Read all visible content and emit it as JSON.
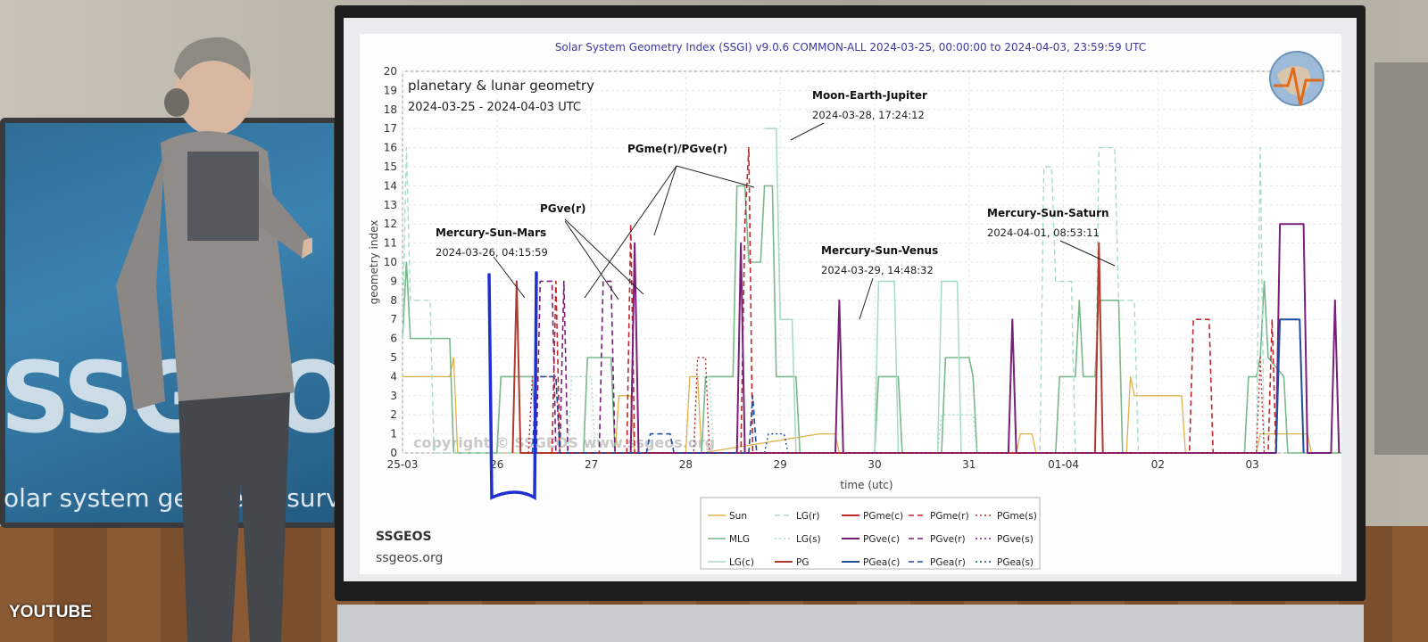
{
  "overlay": {
    "watermark": "YOUTUBE"
  },
  "backdrop": {
    "logo_text": "SSGEOS",
    "subtitle": "olar system geometry survey"
  },
  "colors": {
    "Sun": "#e0b04a",
    "MLG": "#78b88a",
    "LGc": "#a8dcc8",
    "LGr": "#a8dcc8",
    "LGs": "#a8dcc8",
    "PG": "#b03a2e",
    "PGme": "#c0282e",
    "PGve": "#7a1f7a",
    "PGea": "#1f4e9a",
    "marker": "#1f2fd0"
  },
  "chart_data": {
    "type": "line",
    "title": "Solar System Geometry Index (SSGI) v9.0.6 COMMON-ALL 2024-03-25, 00:00:00 to 2024-04-03, 23:59:59 UTC",
    "inner_title": "planetary & lunar geometry",
    "inner_subtitle": "2024-03-25 - 2024-04-03 UTC",
    "xlabel": "time (utc)",
    "ylabel": "geometry index",
    "xlim": [
      "2024-03-25 00:00",
      "2024-04-03 23:59"
    ],
    "ylim": [
      0,
      20
    ],
    "x_ticks": [
      "25-03",
      "26",
      "27",
      "28",
      "29",
      "30",
      "31",
      "01-04",
      "02",
      "03"
    ],
    "y_ticks": [
      0,
      1,
      2,
      3,
      4,
      5,
      6,
      7,
      8,
      9,
      10,
      11,
      12,
      13,
      14,
      15,
      16,
      17,
      18,
      19,
      20
    ],
    "grid": true,
    "copyright": "copyright © SSGEOS  www.ssgeos.org",
    "footer_name": "SSGEOS",
    "footer_url": "ssgeos.org",
    "legend": [
      [
        "Sun",
        "LG(r)",
        "PGme(c)",
        "PGme(r)",
        "PGme(s)"
      ],
      [
        "MLG",
        "LG(s)",
        "PGve(c)",
        "PGve(r)",
        "PGve(s)"
      ],
      [
        "LG(c)",
        "PG",
        "PGea(c)",
        "PGea(r)",
        "PGea(s)"
      ]
    ],
    "annotations": [
      {
        "name": "Mercury-Sun-Mars",
        "date": "2024-03-26, 04:15:59"
      },
      {
        "name": "PGve(r)",
        "date": ""
      },
      {
        "name": "PGme(r)/PGve(r)",
        "date": ""
      },
      {
        "name": "Moon-Earth-Jupiter",
        "date": "2024-03-28, 17:24:12"
      },
      {
        "name": "Mercury-Sun-Venus",
        "date": "2024-03-29, 14:48:32"
      },
      {
        "name": "Mercury-Sun-Saturn",
        "date": "2024-04-01, 08:53:11"
      }
    ],
    "series": [
      {
        "name": "Sun",
        "points": [
          [
            "2024-03-25 00:00",
            4
          ],
          [
            "2024-03-25 12:00",
            4
          ],
          [
            "2024-03-25 13:00",
            5
          ],
          [
            "2024-03-25 14:00",
            0
          ],
          [
            "2024-03-27 06:00",
            0
          ],
          [
            "2024-03-27 07:00",
            3
          ],
          [
            "2024-03-27 10:00",
            3
          ],
          [
            "2024-03-27 11:00",
            0
          ],
          [
            "2024-03-28 00:00",
            0
          ],
          [
            "2024-03-28 01:00",
            4
          ],
          [
            "2024-03-28 03:00",
            4
          ],
          [
            "2024-03-28 04:00",
            0
          ],
          [
            "2024-03-29 10:00",
            1
          ],
          [
            "2024-03-29 14:00",
            1
          ],
          [
            "2024-03-29 15:00",
            0
          ],
          [
            "2024-03-31 12:00",
            0
          ],
          [
            "2024-03-31 13:00",
            1
          ],
          [
            "2024-03-31 16:00",
            1
          ],
          [
            "2024-03-31 17:00",
            0
          ],
          [
            "2024-04-01 16:00",
            0
          ],
          [
            "2024-04-01 17:00",
            4
          ],
          [
            "2024-04-01 18:00",
            3
          ],
          [
            "2024-04-02 06:00",
            3
          ],
          [
            "2024-04-02 07:00",
            0
          ],
          [
            "2024-04-03 01:00",
            0
          ],
          [
            "2024-04-03 02:00",
            1
          ],
          [
            "2024-04-03 14:00",
            1
          ],
          [
            "2024-04-03 15:00",
            0
          ],
          [
            "2024-04-03 23:59",
            0
          ]
        ]
      },
      {
        "name": "MLG",
        "points": [
          [
            "2024-03-25 00:00",
            6
          ],
          [
            "2024-03-25 01:00",
            10
          ],
          [
            "2024-03-25 02:00",
            6
          ],
          [
            "2024-03-25 12:00",
            6
          ],
          [
            "2024-03-25 13:00",
            0
          ],
          [
            "2024-03-26 00:00",
            0
          ],
          [
            "2024-03-26 01:00",
            4
          ],
          [
            "2024-03-26 09:00",
            4
          ],
          [
            "2024-03-26 10:00",
            0
          ],
          [
            "2024-03-26 22:00",
            0
          ],
          [
            "2024-03-26 23:00",
            5
          ],
          [
            "2024-03-27 05:00",
            5
          ],
          [
            "2024-03-27 06:00",
            0
          ],
          [
            "2024-03-28 04:00",
            0
          ],
          [
            "2024-03-28 05:00",
            4
          ],
          [
            "2024-03-28 12:00",
            4
          ],
          [
            "2024-03-28 13:00",
            14
          ],
          [
            "2024-03-28 15:00",
            14
          ],
          [
            "2024-03-28 16:00",
            10
          ],
          [
            "2024-03-28 19:00",
            10
          ],
          [
            "2024-03-28 20:00",
            14
          ],
          [
            "2024-03-28 22:00",
            14
          ],
          [
            "2024-03-28 23:00",
            4
          ],
          [
            "2024-03-29 04:00",
            4
          ],
          [
            "2024-03-29 05:00",
            0
          ],
          [
            "2024-03-30 00:00",
            0
          ],
          [
            "2024-03-30 01:00",
            4
          ],
          [
            "2024-03-30 06:00",
            4
          ],
          [
            "2024-03-30 07:00",
            0
          ],
          [
            "2024-03-30 17:00",
            0
          ],
          [
            "2024-03-30 18:00",
            5
          ],
          [
            "2024-03-31 00:00",
            5
          ],
          [
            "2024-03-31 01:00",
            4
          ],
          [
            "2024-03-31 02:00",
            0
          ],
          [
            "2024-03-31 22:00",
            0
          ],
          [
            "2024-03-31 23:00",
            4
          ],
          [
            "2024-04-01 03:00",
            4
          ],
          [
            "2024-04-01 04:00",
            8
          ],
          [
            "2024-04-01 05:00",
            4
          ],
          [
            "2024-04-01 08:00",
            4
          ],
          [
            "2024-04-01 09:00",
            8
          ],
          [
            "2024-04-01 14:00",
            8
          ],
          [
            "2024-04-01 15:00",
            0
          ],
          [
            "2024-04-02 22:00",
            0
          ],
          [
            "2024-04-02 23:00",
            4
          ],
          [
            "2024-04-03 01:00",
            4
          ],
          [
            "2024-04-03 02:00",
            5
          ],
          [
            "2024-04-03 03:00",
            9
          ],
          [
            "2024-04-03 04:00",
            5
          ],
          [
            "2024-04-03 08:00",
            4
          ],
          [
            "2024-04-03 09:00",
            0
          ],
          [
            "2024-04-03 23:59",
            0
          ]
        ]
      },
      {
        "name": "LG(c)",
        "points": [
          [
            "2024-03-28 20:00",
            17
          ],
          [
            "2024-03-28 23:00",
            17
          ],
          [
            "2024-03-29 00:00",
            7
          ],
          [
            "2024-03-29 03:00",
            7
          ],
          [
            "2024-03-29 04:00",
            0
          ],
          [
            "2024-03-30 00:00",
            0
          ],
          [
            "2024-03-30 01:00",
            9
          ],
          [
            "2024-03-30 05:00",
            9
          ],
          [
            "2024-03-30 06:00",
            0
          ],
          [
            "2024-03-30 16:00",
            0
          ],
          [
            "2024-03-30 17:00",
            9
          ],
          [
            "2024-03-30 21:00",
            9
          ],
          [
            "2024-03-30 22:00",
            0
          ]
        ]
      },
      {
        "name": "LG(r)",
        "points": [
          [
            "2024-03-25 00:00",
            6
          ],
          [
            "2024-03-25 01:00",
            16
          ],
          [
            "2024-03-25 02:00",
            8
          ],
          [
            "2024-03-25 07:00",
            8
          ],
          [
            "2024-03-25 08:00",
            0
          ],
          [
            "2024-03-31 18:00",
            0
          ],
          [
            "2024-03-31 19:00",
            15
          ],
          [
            "2024-03-31 21:00",
            15
          ],
          [
            "2024-03-31 22:00",
            9
          ],
          [
            "2024-04-01 02:00",
            9
          ],
          [
            "2024-04-01 03:00",
            0
          ],
          [
            "2024-04-01 08:00",
            0
          ],
          [
            "2024-04-01 09:00",
            16
          ],
          [
            "2024-04-01 13:00",
            16
          ],
          [
            "2024-04-01 14:00",
            8
          ],
          [
            "2024-04-01 18:00",
            8
          ],
          [
            "2024-04-01 19:00",
            0
          ],
          [
            "2024-04-03 01:00",
            0
          ],
          [
            "2024-04-03 02:00",
            16
          ],
          [
            "2024-04-03 03:00",
            0
          ]
        ]
      },
      {
        "name": "LG(s)",
        "points": [
          [
            "2024-03-26 18:00",
            0
          ],
          [
            "2024-03-26 19:00",
            4
          ],
          [
            "2024-03-27 00:00",
            4
          ],
          [
            "2024-03-27 01:00",
            0
          ],
          [
            "2024-03-28 02:00",
            0
          ],
          [
            "2024-03-28 03:00",
            4
          ],
          [
            "2024-03-28 06:00",
            4
          ],
          [
            "2024-03-28 07:00",
            0
          ],
          [
            "2024-03-30 16:00",
            0
          ],
          [
            "2024-03-30 17:00",
            2
          ],
          [
            "2024-03-31 01:00",
            2
          ],
          [
            "2024-03-31 02:00",
            0
          ]
        ]
      },
      {
        "name": "PG",
        "points": [
          [
            "2024-03-26 04:00",
            0
          ],
          [
            "2024-03-26 05:00",
            9
          ],
          [
            "2024-03-26 06:00",
            0
          ],
          [
            "2024-04-01 08:00",
            0
          ],
          [
            "2024-04-01 09:00",
            11
          ],
          [
            "2024-04-01 10:00",
            0
          ]
        ]
      },
      {
        "name": "PGme(r)",
        "points": [
          [
            "2024-03-26 14:00",
            0
          ],
          [
            "2024-03-26 15:00",
            9
          ],
          [
            "2024-03-26 16:00",
            0
          ],
          [
            "2024-03-27 09:00",
            0
          ],
          [
            "2024-03-27 10:00",
            12
          ],
          [
            "2024-03-27 11:00",
            0
          ],
          [
            "2024-03-28 14:00",
            0
          ],
          [
            "2024-03-28 15:00",
            12
          ],
          [
            "2024-03-28 16:00",
            16
          ],
          [
            "2024-03-28 17:00",
            0
          ],
          [
            "2024-04-02 08:00",
            0
          ],
          [
            "2024-04-02 09:00",
            7
          ],
          [
            "2024-04-02 13:00",
            7
          ],
          [
            "2024-04-02 14:00",
            0
          ],
          [
            "2024-04-03 04:00",
            0
          ],
          [
            "2024-04-03 05:00",
            7
          ],
          [
            "2024-04-03 06:00",
            0
          ]
        ]
      },
      {
        "name": "PGve(c)",
        "points": [
          [
            "2024-03-27 10:00",
            0
          ],
          [
            "2024-03-27 11:00",
            11
          ],
          [
            "2024-03-27 12:00",
            0
          ],
          [
            "2024-03-28 13:00",
            0
          ],
          [
            "2024-03-28 14:00",
            11
          ],
          [
            "2024-03-28 15:00",
            0
          ],
          [
            "2024-03-29 14:00",
            0
          ],
          [
            "2024-03-29 15:00",
            8
          ],
          [
            "2024-03-29 16:00",
            0
          ],
          [
            "2024-03-31 10:00",
            0
          ],
          [
            "2024-03-31 11:00",
            7
          ],
          [
            "2024-03-31 12:00",
            0
          ],
          [
            "2024-04-03 06:00",
            0
          ],
          [
            "2024-04-03 07:00",
            12
          ],
          [
            "2024-04-03 13:00",
            12
          ],
          [
            "2024-04-03 14:00",
            0
          ],
          [
            "2024-04-03 20:00",
            0
          ],
          [
            "2024-04-03 21:00",
            8
          ],
          [
            "2024-04-03 22:00",
            0
          ]
        ]
      },
      {
        "name": "PGve(r)",
        "points": [
          [
            "2024-03-26 10:00",
            0
          ],
          [
            "2024-03-26 11:00",
            9
          ],
          [
            "2024-03-26 14:00",
            9
          ],
          [
            "2024-03-26 15:00",
            0
          ],
          [
            "2024-03-26 16:00",
            0
          ],
          [
            "2024-03-26 17:00",
            9
          ],
          [
            "2024-03-26 18:00",
            0
          ],
          [
            "2024-03-27 02:00",
            0
          ],
          [
            "2024-03-27 03:00",
            9
          ],
          [
            "2024-03-27 05:00",
            9
          ],
          [
            "2024-03-27 06:00",
            0
          ],
          [
            "2024-03-31 10:00",
            0
          ],
          [
            "2024-03-31 11:00",
            7
          ],
          [
            "2024-03-31 12:00",
            0
          ]
        ]
      },
      {
        "name": "PGme(s)",
        "points": [
          [
            "2024-03-26 08:00",
            0
          ],
          [
            "2024-03-26 09:00",
            4
          ],
          [
            "2024-03-26 15:00",
            4
          ],
          [
            "2024-03-26 16:00",
            0
          ],
          [
            "2024-03-28 02:00",
            0
          ],
          [
            "2024-03-28 03:00",
            5
          ],
          [
            "2024-03-28 05:00",
            5
          ],
          [
            "2024-03-28 06:00",
            0
          ],
          [
            "2024-04-03 01:00",
            0
          ],
          [
            "2024-04-03 02:00",
            5
          ],
          [
            "2024-04-03 03:00",
            0
          ]
        ]
      },
      {
        "name": "PGea(c)",
        "points": [
          [
            "2024-04-03 06:00",
            0
          ],
          [
            "2024-04-03 07:00",
            7
          ],
          [
            "2024-04-03 12:00",
            7
          ],
          [
            "2024-04-03 13:00",
            0
          ]
        ]
      },
      {
        "name": "PGea(r)",
        "points": [
          [
            "2024-03-26 09:00",
            0
          ],
          [
            "2024-03-26 10:00",
            4
          ],
          [
            "2024-03-26 15:00",
            4
          ],
          [
            "2024-03-26 16:00",
            0
          ],
          [
            "2024-03-27 14:00",
            0
          ],
          [
            "2024-03-27 15:00",
            1
          ],
          [
            "2024-03-27 20:00",
            1
          ],
          [
            "2024-03-27 21:00",
            0
          ],
          [
            "2024-03-28 16:00",
            0
          ],
          [
            "2024-03-28 17:00",
            3
          ],
          [
            "2024-03-28 18:00",
            0
          ]
        ]
      },
      {
        "name": "PGea(s)",
        "points": [
          [
            "2024-03-28 20:00",
            0
          ],
          [
            "2024-03-28 21:00",
            1
          ],
          [
            "2024-03-29 01:00",
            1
          ],
          [
            "2024-03-29 02:00",
            0
          ]
        ]
      }
    ]
  }
}
